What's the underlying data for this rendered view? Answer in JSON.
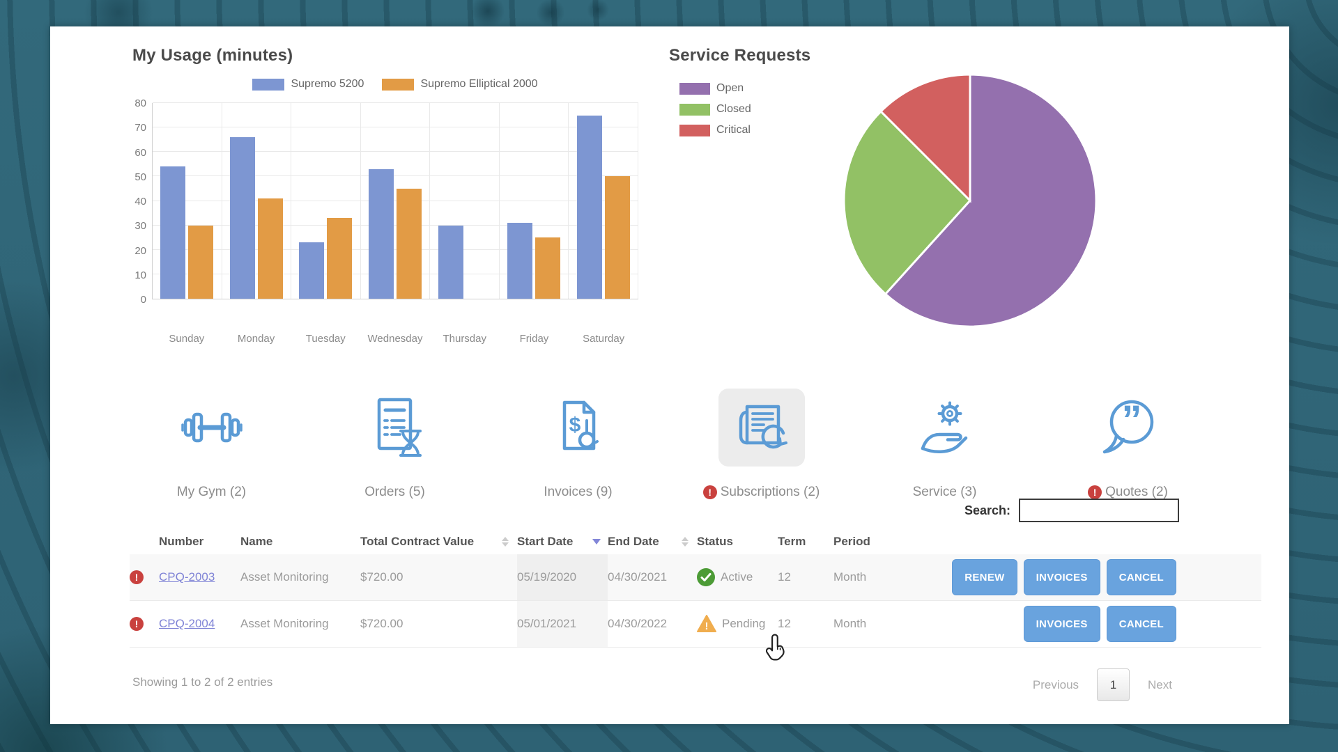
{
  "colors": {
    "accent_blue": "#69A3DE",
    "icon_blue": "#5B9BD5",
    "link": "#7F83D6",
    "alert_red": "#C9413E",
    "active_green": "#4C9B36",
    "pending_orange": "#F0AD4E",
    "background_teal": "#31687A"
  },
  "chart_data": [
    {
      "type": "bar",
      "title": "My Usage (minutes)",
      "categories": [
        "Sunday",
        "Monday",
        "Tuesday",
        "Wednesday",
        "Thursday",
        "Friday",
        "Saturday"
      ],
      "series": [
        {
          "name": "Supremo 5200",
          "color": "#7D96D2",
          "values": [
            54,
            66,
            23,
            53,
            30,
            31,
            75
          ]
        },
        {
          "name": "Supremo Elliptical 2000",
          "color": "#E29B45",
          "values": [
            30,
            41,
            33,
            45,
            0,
            25,
            50
          ]
        }
      ],
      "xlabel": "",
      "ylabel": "",
      "ylim": [
        0,
        80
      ],
      "ytick_step": 10,
      "grid": true,
      "legend_position": "top"
    },
    {
      "type": "pie",
      "title": "Service Requests",
      "slices": [
        {
          "label": "Open",
          "pct": 61.7,
          "color": "#9470AE"
        },
        {
          "label": "Closed",
          "pct": 25.8,
          "color": "#92C165"
        },
        {
          "label": "Critical",
          "pct": 12.5,
          "color": "#D2605F"
        }
      ],
      "legend_position": "left"
    }
  ],
  "nav": {
    "alert_char": "!",
    "items": [
      {
        "id": "my-gym",
        "label": "My Gym (2)",
        "alert": false,
        "selected": false
      },
      {
        "id": "orders",
        "label": "Orders (5)",
        "alert": false,
        "selected": false
      },
      {
        "id": "invoices",
        "label": "Invoices (9)",
        "alert": false,
        "selected": false
      },
      {
        "id": "subscriptions",
        "label": "Subscriptions (2)",
        "alert": true,
        "selected": true
      },
      {
        "id": "service",
        "label": "Service (3)",
        "alert": false,
        "selected": false
      },
      {
        "id": "quotes",
        "label": "Quotes (2)",
        "alert": true,
        "selected": false
      }
    ]
  },
  "search": {
    "label": "Search:",
    "value": ""
  },
  "table": {
    "headers": [
      "Number",
      "Name",
      "Total Contract Value",
      "Start Date",
      "End Date",
      "Status",
      "Term",
      "Period"
    ],
    "sorted_column": "Start Date",
    "sort_direction": "desc",
    "rows": [
      {
        "alert": true,
        "number": "CPQ-2003",
        "name": "Asset Monitoring",
        "total_contract_value": "$720.00",
        "start_date": "05/19/2020",
        "end_date": "04/30/2021",
        "status": {
          "text": "Active",
          "type": "active"
        },
        "term": "12",
        "period": "Month",
        "actions": [
          "RENEW",
          "INVOICES",
          "CANCEL"
        ]
      },
      {
        "alert": true,
        "number": "CPQ-2004",
        "name": "Asset Monitoring",
        "total_contract_value": "$720.00",
        "start_date": "05/01/2021",
        "end_date": "04/30/2022",
        "status": {
          "text": "Pending",
          "type": "pending"
        },
        "term": "12",
        "period": "Month",
        "actions": [
          "INVOICES",
          "CANCEL"
        ]
      }
    ],
    "footer": "Showing 1 to 2 of 2 entries"
  },
  "pagination": {
    "previous": "Previous",
    "page": "1",
    "next": "Next"
  }
}
